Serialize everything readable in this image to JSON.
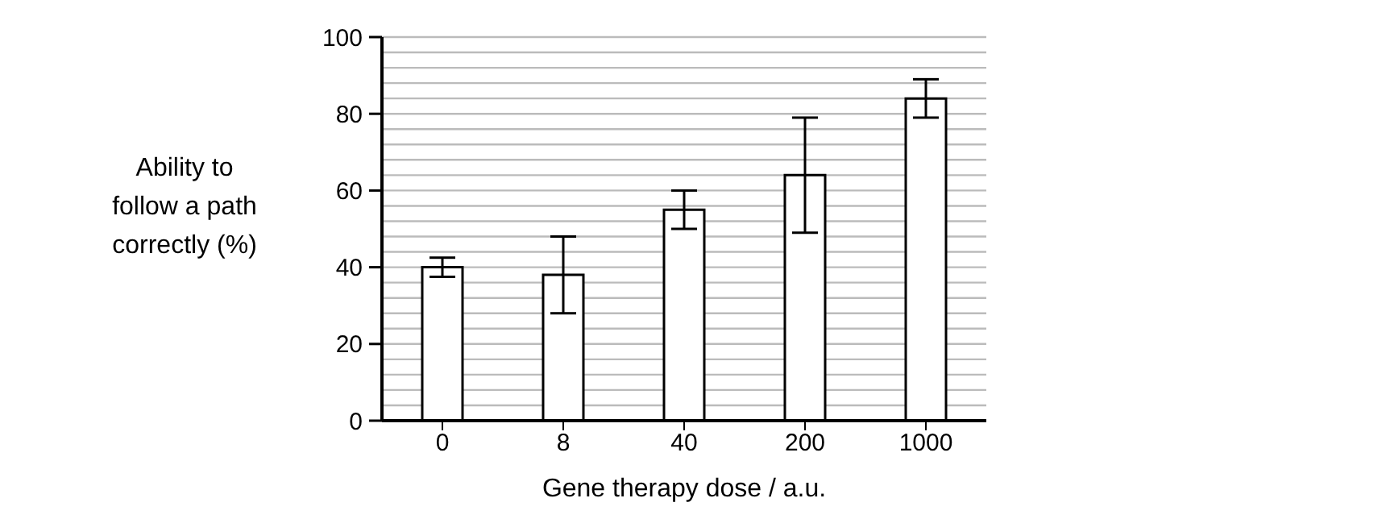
{
  "chart_data": {
    "type": "bar",
    "xlabel": "Gene therapy dose / a.u.",
    "ylabel": "Ability to follow a path correctly (%)",
    "categories": [
      "0",
      "8",
      "40",
      "200",
      "1000"
    ],
    "values": [
      40,
      38,
      55,
      64,
      84
    ],
    "errors": [
      2.5,
      10,
      5,
      15,
      5
    ],
    "color": "#ffffff",
    "ylim": [
      0,
      100
    ],
    "yticks": [
      0,
      {
        "value": 4,
        "label": null
      },
      {
        "value": 8,
        "label": null
      },
      {
        "value": 12,
        "label": null
      },
      {
        "value": 16,
        "label": null
      },
      20,
      {
        "value": 24,
        "label": null
      },
      {
        "value": 28,
        "label": null
      },
      {
        "value": 32,
        "label": null
      },
      {
        "value": 36,
        "label": null
      },
      40,
      {
        "value": 44,
        "label": null
      },
      {
        "value": 48,
        "label": null
      },
      {
        "value": 52,
        "label": null
      },
      {
        "value": 56,
        "label": null
      },
      60,
      {
        "value": 64,
        "label": null
      },
      {
        "value": 68,
        "label": null
      },
      {
        "value": 72,
        "label": null
      },
      {
        "value": 76,
        "label": null
      },
      80,
      {
        "value": 84,
        "label": null
      },
      {
        "value": 88,
        "label": null
      },
      {
        "value": 92,
        "label": null
      },
      {
        "value": 96,
        "label": null
      },
      100
    ],
    "grid": "y"
  }
}
